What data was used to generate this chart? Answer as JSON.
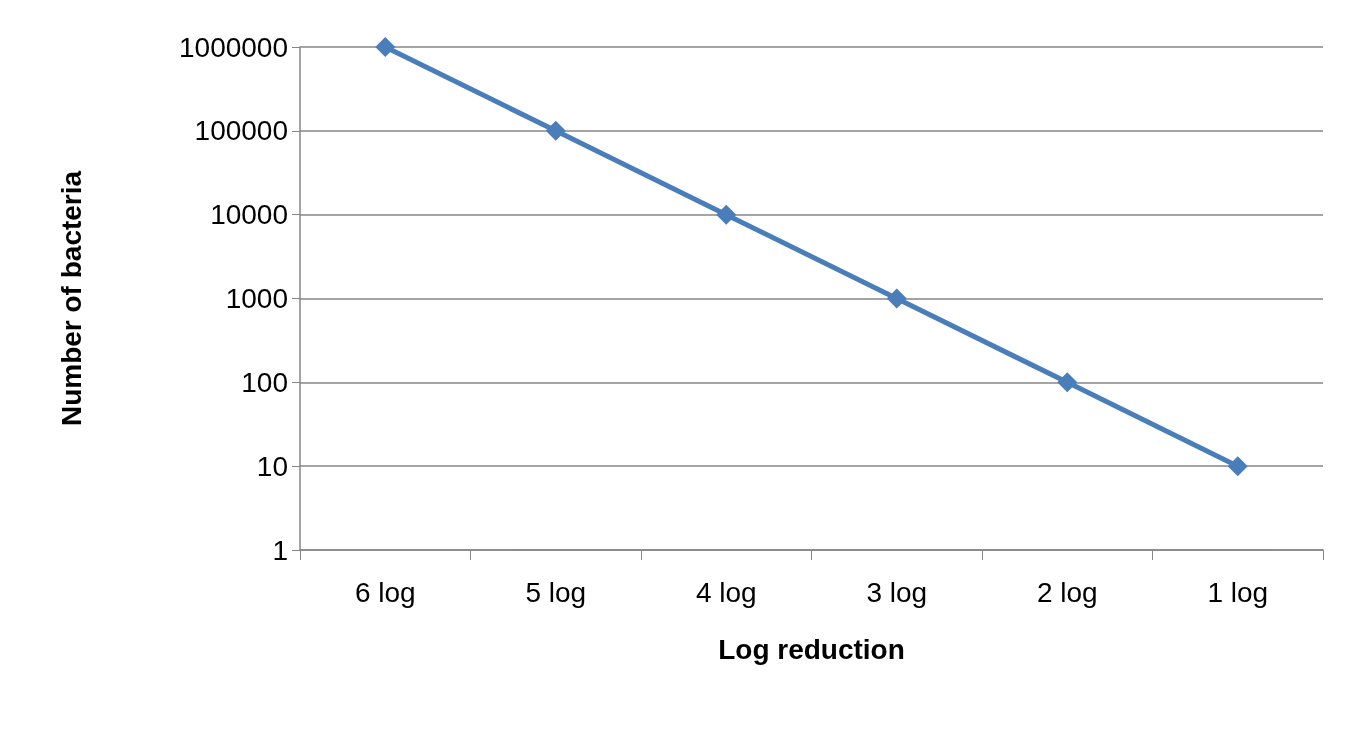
{
  "chart_data": {
    "type": "line",
    "xlabel": "Log reduction",
    "ylabel": "Number of bacteria",
    "categories": [
      "6 log",
      "5 log",
      "4 log",
      "3 log",
      "2 log",
      "1 log"
    ],
    "series": [
      {
        "color": "#4a7ebb",
        "values": [
          1000000,
          100000,
          10000,
          1000,
          100,
          10
        ]
      }
    ],
    "log": "y",
    "ylim": [
      1,
      1000000
    ],
    "yticks": [
      1,
      10,
      100,
      1000,
      10000,
      100000,
      1000000
    ],
    "grid": "y",
    "marker": "diamond",
    "line_style": "solid"
  }
}
